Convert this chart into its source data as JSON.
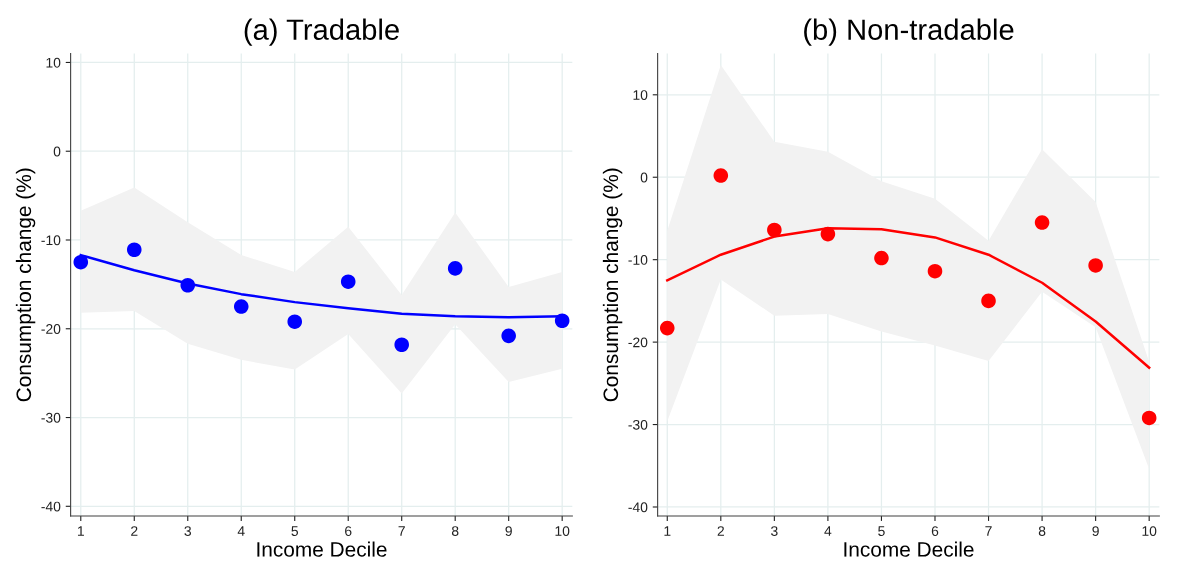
{
  "chart_data": [
    {
      "type": "scatter",
      "title": "(a) Tradable",
      "xlabel": "Income Decile",
      "ylabel": "Consumption change (%)",
      "x": [
        1,
        2,
        3,
        4,
        5,
        6,
        7,
        8,
        9,
        10
      ],
      "xlim": [
        0.81,
        10.19
      ],
      "xticks": [
        1,
        2,
        3,
        4,
        5,
        6,
        7,
        8,
        9,
        10
      ],
      "ylim": [
        -41.1,
        11
      ],
      "yticks": [
        -40,
        -30,
        -20,
        -10,
        0,
        10
      ],
      "grid": true,
      "legend": false,
      "series": [
        {
          "marker": "circle",
          "color": "#0000ff",
          "values": [
            -12.5,
            -11.1,
            -15.1,
            -17.5,
            -19.2,
            -14.7,
            -21.8,
            -13.2,
            -20.8,
            -19.1
          ],
          "lower": [
            -18.2,
            -18.0,
            -21.7,
            -23.5,
            -24.6,
            -20.6,
            -27.3,
            -19.5,
            -26.0,
            -24.5
          ],
          "upper": [
            -6.7,
            -4.1,
            -8.0,
            -11.7,
            -13.6,
            -8.5,
            -16.2,
            -6.9,
            -15.3,
            -13.6
          ]
        },
        {
          "type": "line",
          "marker": "none",
          "color": "#0000ff",
          "line_style": "solid",
          "values": [
            -11.7,
            -13.4,
            -14.9,
            -16.1,
            -17.0,
            -17.7,
            -18.3,
            -18.6,
            -18.7,
            -18.6
          ]
        }
      ]
    },
    {
      "type": "scatter",
      "title": "(b) Non-tradable",
      "xlabel": "Income Decile",
      "ylabel": "Consumption change (%)",
      "x": [
        1,
        2,
        3,
        4,
        5,
        6,
        7,
        8,
        9,
        10
      ],
      "xlim": [
        0.82,
        10.19
      ],
      "xticks": [
        1,
        2,
        3,
        4,
        5,
        6,
        7,
        8,
        9,
        10
      ],
      "ylim": [
        -41.1,
        15
      ],
      "yticks": [
        -40,
        -30,
        -20,
        -10,
        0,
        10
      ],
      "grid": true,
      "legend": false,
      "series": [
        {
          "marker": "circle",
          "color": "#ff0000",
          "values": [
            -18.3,
            0.2,
            -6.4,
            -6.9,
            -9.8,
            -11.4,
            -15.0,
            -5.5,
            -10.7,
            -29.2
          ],
          "lower": [
            -29.6,
            -12.4,
            -16.8,
            -16.6,
            -18.7,
            -20.4,
            -22.3,
            -13.9,
            -18.2,
            -35.4
          ],
          "upper": [
            -6.5,
            13.6,
            4.3,
            3.1,
            -0.5,
            -2.6,
            -7.7,
            3.4,
            -3.0,
            -22.4
          ]
        },
        {
          "type": "line",
          "marker": "none",
          "color": "#ff0000",
          "line_style": "solid",
          "values": [
            -12.5,
            -9.4,
            -7.2,
            -6.2,
            -6.3,
            -7.3,
            -9.4,
            -12.8,
            -17.5,
            -23.1
          ]
        }
      ]
    }
  ]
}
